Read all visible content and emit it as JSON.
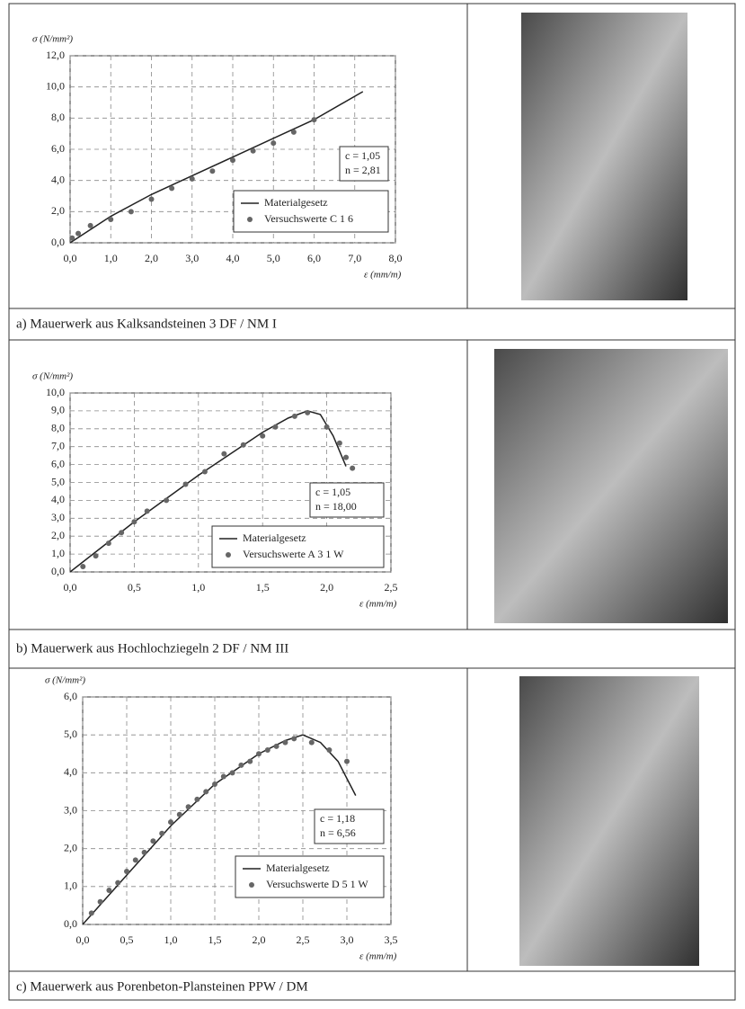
{
  "chart_data": [
    {
      "type": "line",
      "caption": "a) Mauerwerk aus Kalksandsteinen 3 DF / NM I",
      "y_label": "σ (N/mm²)",
      "x_label": "ε (mm/m)",
      "grid": true,
      "xlim": [
        0,
        8
      ],
      "ylim": [
        0,
        12
      ],
      "xticks": [
        {
          "value": 0,
          "label": "0,0"
        },
        {
          "value": 1,
          "label": "1,0"
        },
        {
          "value": 2,
          "label": "2,0"
        },
        {
          "value": 3,
          "label": "3,0"
        },
        {
          "value": 4,
          "label": "4,0"
        },
        {
          "value": 5,
          "label": "5,0"
        },
        {
          "value": 6,
          "label": "6,0"
        },
        {
          "value": 7,
          "label": "7,0"
        },
        {
          "value": 8,
          "label": "8,0"
        }
      ],
      "yticks": [
        {
          "value": 0,
          "label": "0,0"
        },
        {
          "value": 2,
          "label": "2,0"
        },
        {
          "value": 4,
          "label": "4,0"
        },
        {
          "value": 6,
          "label": "6,0"
        },
        {
          "value": 8,
          "label": "8,0"
        },
        {
          "value": 10,
          "label": "10,0"
        },
        {
          "value": 12,
          "label": "12,0"
        }
      ],
      "annotations": [
        "c = 1,05",
        "n = 2,81"
      ],
      "series": [
        {
          "name": "Materialgesetz",
          "kind": "line",
          "color": "#222222",
          "x": [
            0,
            1,
            2,
            3,
            4,
            5,
            6,
            7.2
          ],
          "values": [
            0,
            1.7,
            3.1,
            4.3,
            5.5,
            6.7,
            7.9,
            9.7
          ]
        },
        {
          "name": "Versuchswerte C 1 6",
          "kind": "scatter",
          "color": "#666666",
          "x": [
            0.05,
            0.2,
            0.5,
            1,
            1.5,
            2,
            2.5,
            3,
            3.5,
            4,
            4.5,
            5,
            5.5,
            6
          ],
          "values": [
            0.3,
            0.6,
            1.1,
            1.5,
            2.0,
            2.8,
            3.5,
            4.1,
            4.6,
            5.3,
            5.9,
            6.4,
            7.1,
            7.9
          ]
        }
      ]
    },
    {
      "type": "line",
      "caption": "b) Mauerwerk aus Hochlochziegeln 2 DF / NM III",
      "y_label": "σ (N/mm²)",
      "x_label": "ε (mm/m)",
      "grid": true,
      "xlim": [
        0,
        2.5
      ],
      "ylim": [
        0,
        10
      ],
      "xticks": [
        {
          "value": 0,
          "label": "0,0"
        },
        {
          "value": 0.5,
          "label": "0,5"
        },
        {
          "value": 1,
          "label": "1,0"
        },
        {
          "value": 1.5,
          "label": "1,5"
        },
        {
          "value": 2,
          "label": "2,0"
        },
        {
          "value": 2.5,
          "label": "2,5"
        }
      ],
      "yticks": [
        {
          "value": 0,
          "label": "0,0"
        },
        {
          "value": 1,
          "label": "1,0"
        },
        {
          "value": 2,
          "label": "2,0"
        },
        {
          "value": 3,
          "label": "3,0"
        },
        {
          "value": 4,
          "label": "4,0"
        },
        {
          "value": 5,
          "label": "5,0"
        },
        {
          "value": 6,
          "label": "6,0"
        },
        {
          "value": 7,
          "label": "7,0"
        },
        {
          "value": 8,
          "label": "8,0"
        },
        {
          "value": 9,
          "label": "9,0"
        },
        {
          "value": 10,
          "label": "10,0"
        }
      ],
      "annotations": [
        "c = 1,05",
        "n = 18,00"
      ],
      "series": [
        {
          "name": "Materialgesetz",
          "kind": "line",
          "color": "#222222",
          "x": [
            0,
            0.25,
            0.5,
            0.75,
            1,
            1.25,
            1.5,
            1.7,
            1.85,
            1.95,
            2.05,
            2.15
          ],
          "values": [
            0,
            1.4,
            2.8,
            4.1,
            5.4,
            6.6,
            7.8,
            8.6,
            9.0,
            8.8,
            7.6,
            5.9
          ]
        },
        {
          "name": "Versuchswerte A 3 1 W",
          "kind": "scatter",
          "color": "#666666",
          "x": [
            0.1,
            0.2,
            0.3,
            0.4,
            0.5,
            0.6,
            0.75,
            0.9,
            1.05,
            1.2,
            1.35,
            1.5,
            1.6,
            1.75,
            1.85,
            2.0,
            2.1,
            2.15,
            2.2
          ],
          "values": [
            0.3,
            0.9,
            1.6,
            2.2,
            2.8,
            3.4,
            4.0,
            4.9,
            5.6,
            6.6,
            7.1,
            7.6,
            8.1,
            8.7,
            8.9,
            8.1,
            7.2,
            6.4,
            5.8
          ]
        }
      ]
    },
    {
      "type": "line",
      "caption": "c) Mauerwerk aus Porenbeton-Plansteinen PPW / DM",
      "y_label": "σ (N/mm²)",
      "x_label": "ε (mm/m)",
      "grid": true,
      "xlim": [
        0,
        3.5
      ],
      "ylim": [
        0,
        6
      ],
      "xticks": [
        {
          "value": 0,
          "label": "0,0"
        },
        {
          "value": 0.5,
          "label": "0,5"
        },
        {
          "value": 1,
          "label": "1,0"
        },
        {
          "value": 1.5,
          "label": "1,5"
        },
        {
          "value": 2,
          "label": "2,0"
        },
        {
          "value": 2.5,
          "label": "2,5"
        },
        {
          "value": 3,
          "label": "3,0"
        },
        {
          "value": 3.5,
          "label": "3,5"
        }
      ],
      "yticks": [
        {
          "value": 0,
          "label": "0,0"
        },
        {
          "value": 1,
          "label": "1,0"
        },
        {
          "value": 2,
          "label": "2,0"
        },
        {
          "value": 3,
          "label": "3,0"
        },
        {
          "value": 4,
          "label": "4,0"
        },
        {
          "value": 5,
          "label": "5,0"
        },
        {
          "value": 6,
          "label": "6,0"
        }
      ],
      "annotations": [
        "c = 1,18",
        "n = 6,56"
      ],
      "series": [
        {
          "name": "Materialgesetz",
          "kind": "line",
          "color": "#222222",
          "x": [
            0,
            0.5,
            1,
            1.5,
            2,
            2.3,
            2.5,
            2.7,
            2.9,
            3.1
          ],
          "values": [
            0,
            1.3,
            2.6,
            3.7,
            4.5,
            4.85,
            5.0,
            4.8,
            4.3,
            3.4
          ]
        },
        {
          "name": "Versuchswerte D 5 1 W",
          "kind": "scatter",
          "color": "#666666",
          "x": [
            0.1,
            0.2,
            0.3,
            0.4,
            0.5,
            0.6,
            0.7,
            0.8,
            0.9,
            1.0,
            1.1,
            1.2,
            1.3,
            1.4,
            1.5,
            1.6,
            1.7,
            1.8,
            1.9,
            2.0,
            2.1,
            2.2,
            2.3,
            2.4,
            2.6,
            2.8,
            3.0
          ],
          "values": [
            0.3,
            0.6,
            0.9,
            1.1,
            1.4,
            1.7,
            1.9,
            2.2,
            2.4,
            2.7,
            2.9,
            3.1,
            3.3,
            3.5,
            3.7,
            3.9,
            4.0,
            4.2,
            4.3,
            4.5,
            4.6,
            4.7,
            4.8,
            4.9,
            4.8,
            4.6,
            4.3
          ]
        }
      ]
    }
  ]
}
